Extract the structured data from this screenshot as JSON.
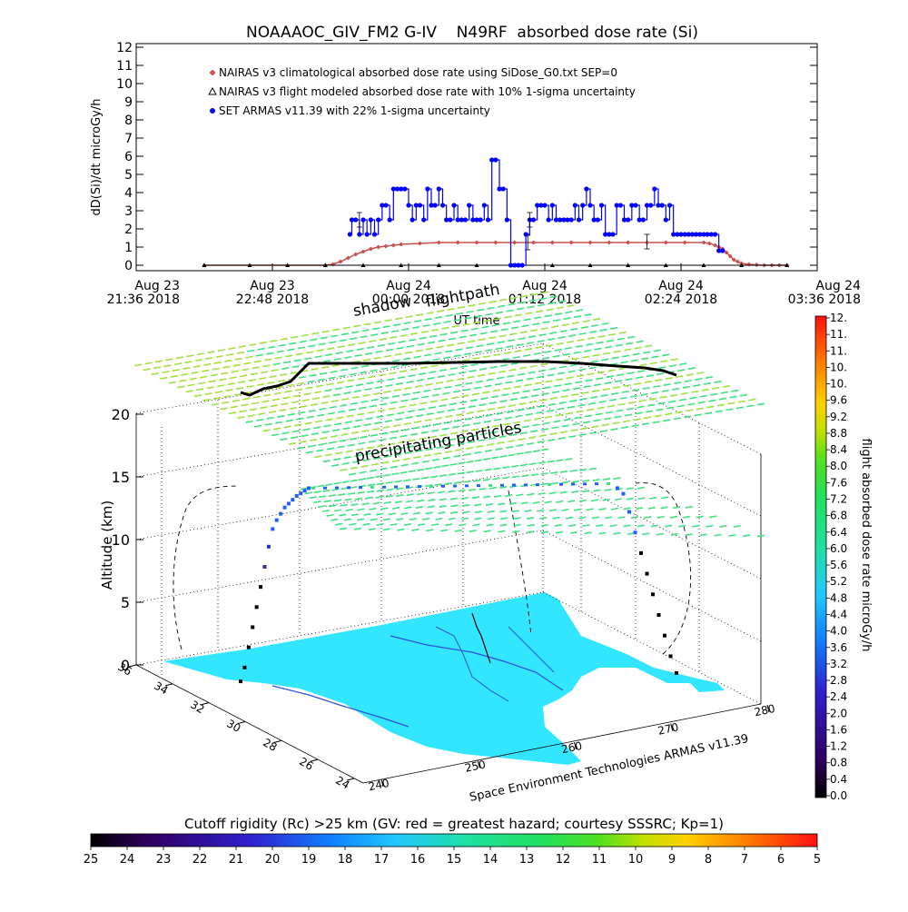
{
  "chart_data": [
    {
      "type": "line",
      "title": "NOAAAOC_GIV_FM2 G-IV    N49RF  absorbed dose rate (Si)",
      "ylabel": "dD(Si)/dt microGy/h",
      "xlabel": "UT time",
      "ylim": [
        0,
        12
      ],
      "yticks": [
        "0",
        "1",
        "2",
        "3",
        "4",
        "5",
        "6",
        "7",
        "8",
        "9",
        "10",
        "11",
        "12"
      ],
      "xlim": [
        0,
        360
      ],
      "xticks": [
        {
          "t": 0,
          "line1": "Aug 23",
          "line2": "21:36 2018"
        },
        {
          "t": 72,
          "line1": "Aug 23",
          "line2": "22:48 2018"
        },
        {
          "t": 144,
          "line1": "Aug 24",
          "line2": "00:00 2018"
        },
        {
          "t": 216,
          "line1": "Aug 24",
          "line2": "01:12 2018"
        },
        {
          "t": 288,
          "line1": "Aug 24",
          "line2": "02:24 2018"
        },
        {
          "t": 360,
          "line1": "Aug 24",
          "line2": "03:36 2018"
        }
      ],
      "legend_position": "top-left",
      "series": [
        {
          "name": "NAIRAS v3 climatological absorbed dose rate using SiDose_G0.txt SEP=0",
          "color": "#c85050",
          "marker": "diamond",
          "x": [
            36,
            100,
            104,
            108,
            112,
            116,
            120,
            124,
            128,
            132,
            136,
            140,
            150,
            160,
            170,
            180,
            190,
            200,
            210,
            220,
            230,
            240,
            250,
            260,
            270,
            280,
            290,
            300,
            303,
            306,
            308,
            310,
            312,
            314,
            316,
            318,
            320,
            324,
            328,
            332,
            336,
            340,
            344
          ],
          "y": [
            0,
            0,
            0.05,
            0.2,
            0.4,
            0.6,
            0.75,
            0.9,
            1.0,
            1.05,
            1.1,
            1.15,
            1.2,
            1.25,
            1.25,
            1.25,
            1.25,
            1.25,
            1.25,
            1.25,
            1.25,
            1.25,
            1.25,
            1.25,
            1.25,
            1.25,
            1.25,
            1.25,
            1.2,
            1.1,
            1.0,
            0.9,
            0.7,
            0.5,
            0.3,
            0.2,
            0.1,
            0.05,
            0.02,
            0,
            0,
            0,
            0
          ]
        },
        {
          "name": "NAIRAS v3 flight modeled absorbed dose rate with 10% 1-sigma uncertainty",
          "color": "#000000",
          "marker": "triangle",
          "x": [
            36,
            60,
            80,
            100,
            120,
            140,
            160,
            180,
            200,
            220,
            240,
            260,
            280,
            300,
            320,
            344
          ],
          "y": [
            0,
            0,
            0,
            0,
            0,
            0,
            0,
            0,
            0,
            0,
            0,
            0,
            0,
            0,
            0,
            0
          ]
        },
        {
          "name": "SET ARMAS v11.39 with 22% 1-sigma uncertainty",
          "color": "#0000ff",
          "marker": "circle",
          "x": [
            113,
            114,
            116,
            118,
            120,
            122,
            124,
            126,
            128,
            130,
            132,
            134,
            136,
            138,
            140,
            142,
            144,
            146,
            148,
            150,
            152,
            154,
            156,
            158,
            160,
            162,
            164,
            166,
            168,
            170,
            172,
            174,
            176,
            178,
            180,
            182,
            184,
            186,
            188,
            190,
            192,
            194,
            196,
            198,
            200,
            202,
            204,
            206,
            208,
            210,
            212,
            214,
            216,
            218,
            220,
            222,
            224,
            226,
            228,
            230,
            232,
            234,
            236,
            238,
            240,
            242,
            244,
            246,
            248,
            250,
            252,
            254,
            256,
            258,
            260,
            262,
            264,
            266,
            268,
            270,
            272,
            274,
            276,
            278,
            280,
            282,
            284,
            286,
            288,
            290,
            292,
            294,
            296,
            298,
            300,
            302,
            304,
            306,
            308,
            310
          ],
          "y": [
            1.7,
            2.5,
            2.5,
            1.7,
            2.5,
            1.7,
            2.5,
            1.7,
            2.5,
            3.3,
            3.3,
            2.5,
            4.2,
            4.2,
            4.2,
            4.2,
            3.3,
            2.5,
            3.3,
            3.3,
            2.5,
            4.2,
            3.3,
            3.3,
            4.2,
            3.3,
            2.5,
            2.5,
            3.3,
            2.5,
            2.5,
            2.5,
            3.3,
            2.5,
            2.5,
            2.5,
            3.3,
            2.5,
            5.8,
            5.8,
            4.2,
            4.2,
            2.5,
            0,
            0,
            0,
            0,
            1.7,
            2.5,
            2.5,
            3.3,
            3.3,
            3.3,
            2.5,
            3.3,
            2.5,
            2.5,
            2.5,
            2.5,
            2.5,
            3.3,
            2.5,
            3.3,
            4.2,
            3.3,
            2.5,
            2.5,
            3.3,
            1.7,
            1.7,
            1.7,
            3.3,
            3.3,
            2.5,
            2.5,
            3.3,
            3.3,
            2.5,
            2.5,
            3.3,
            3.3,
            4.2,
            3.3,
            3.3,
            2.5,
            3.3,
            1.7,
            1.7,
            1.7,
            1.7,
            1.7,
            1.7,
            1.7,
            1.7,
            1.7,
            1.7,
            1.7,
            1.7,
            0.8,
            0.8
          ]
        }
      ]
    },
    {
      "type": "scatter",
      "subtype": "3d-flight-track",
      "zlabel": "Altitude (km)",
      "zlim": [
        0,
        20
      ],
      "zticks": [
        "0",
        "5",
        "10",
        "15",
        "20"
      ],
      "lat_ticks": [
        "36",
        "34",
        "32",
        "30",
        "28",
        "26",
        "24"
      ],
      "lon_ticks": [
        "240",
        "250",
        "260",
        "270",
        "280"
      ],
      "annotations": [
        "shadow",
        "flightpath",
        "precipitating particles"
      ],
      "credit": "Space Environment Technologies ARMAS v11.39",
      "ascent_track_altitude_km": [
        0.5,
        1.5,
        3,
        4.5,
        6,
        7.5,
        9,
        10.5,
        11.8,
        12.4,
        12.8,
        13.2,
        13.4,
        13.6,
        13.8,
        13.9,
        14.0,
        14.1
      ],
      "descent_track_altitude_km": [
        14.1,
        13.8,
        12.5,
        11,
        9.5,
        8,
        6.5,
        5,
        3.5,
        2,
        0.8
      ]
    }
  ],
  "colorbar_right": {
    "label": "flight absorbed dose rate microGy/h",
    "ticks": [
      "0.0",
      "0.4",
      "0.8",
      "1.2",
      "1.6",
      "2.0",
      "2.4",
      "2.8",
      "3.2",
      "3.6",
      "4.0",
      "4.4",
      "4.8",
      "5.2",
      "5.6",
      "6.0",
      "6.4",
      "6.8",
      "7.2",
      "7.6",
      "8.0",
      "8.4",
      "8.8",
      "9.2",
      "9.6",
      "10.",
      "10.",
      "11.",
      "11.",
      "12."
    ]
  },
  "colorbar_bottom": {
    "label": "Cutoff rigidity (Rc) >25 km (GV: red = greatest hazard; courtesy SSSRC; Kp=1)",
    "ticks": [
      "25",
      "24",
      "23",
      "22",
      "21",
      "20",
      "19",
      "18",
      "17",
      "16",
      "15",
      "14",
      "13",
      "12",
      "11",
      "10",
      "9",
      "8",
      "7",
      "6",
      "5"
    ]
  },
  "colors": {
    "ground": "#33e6ff",
    "grid_dot": "#000000",
    "precip_green": "#40e080",
    "precip_yellowgreen": "#a0e040",
    "track_black": "#000000"
  }
}
